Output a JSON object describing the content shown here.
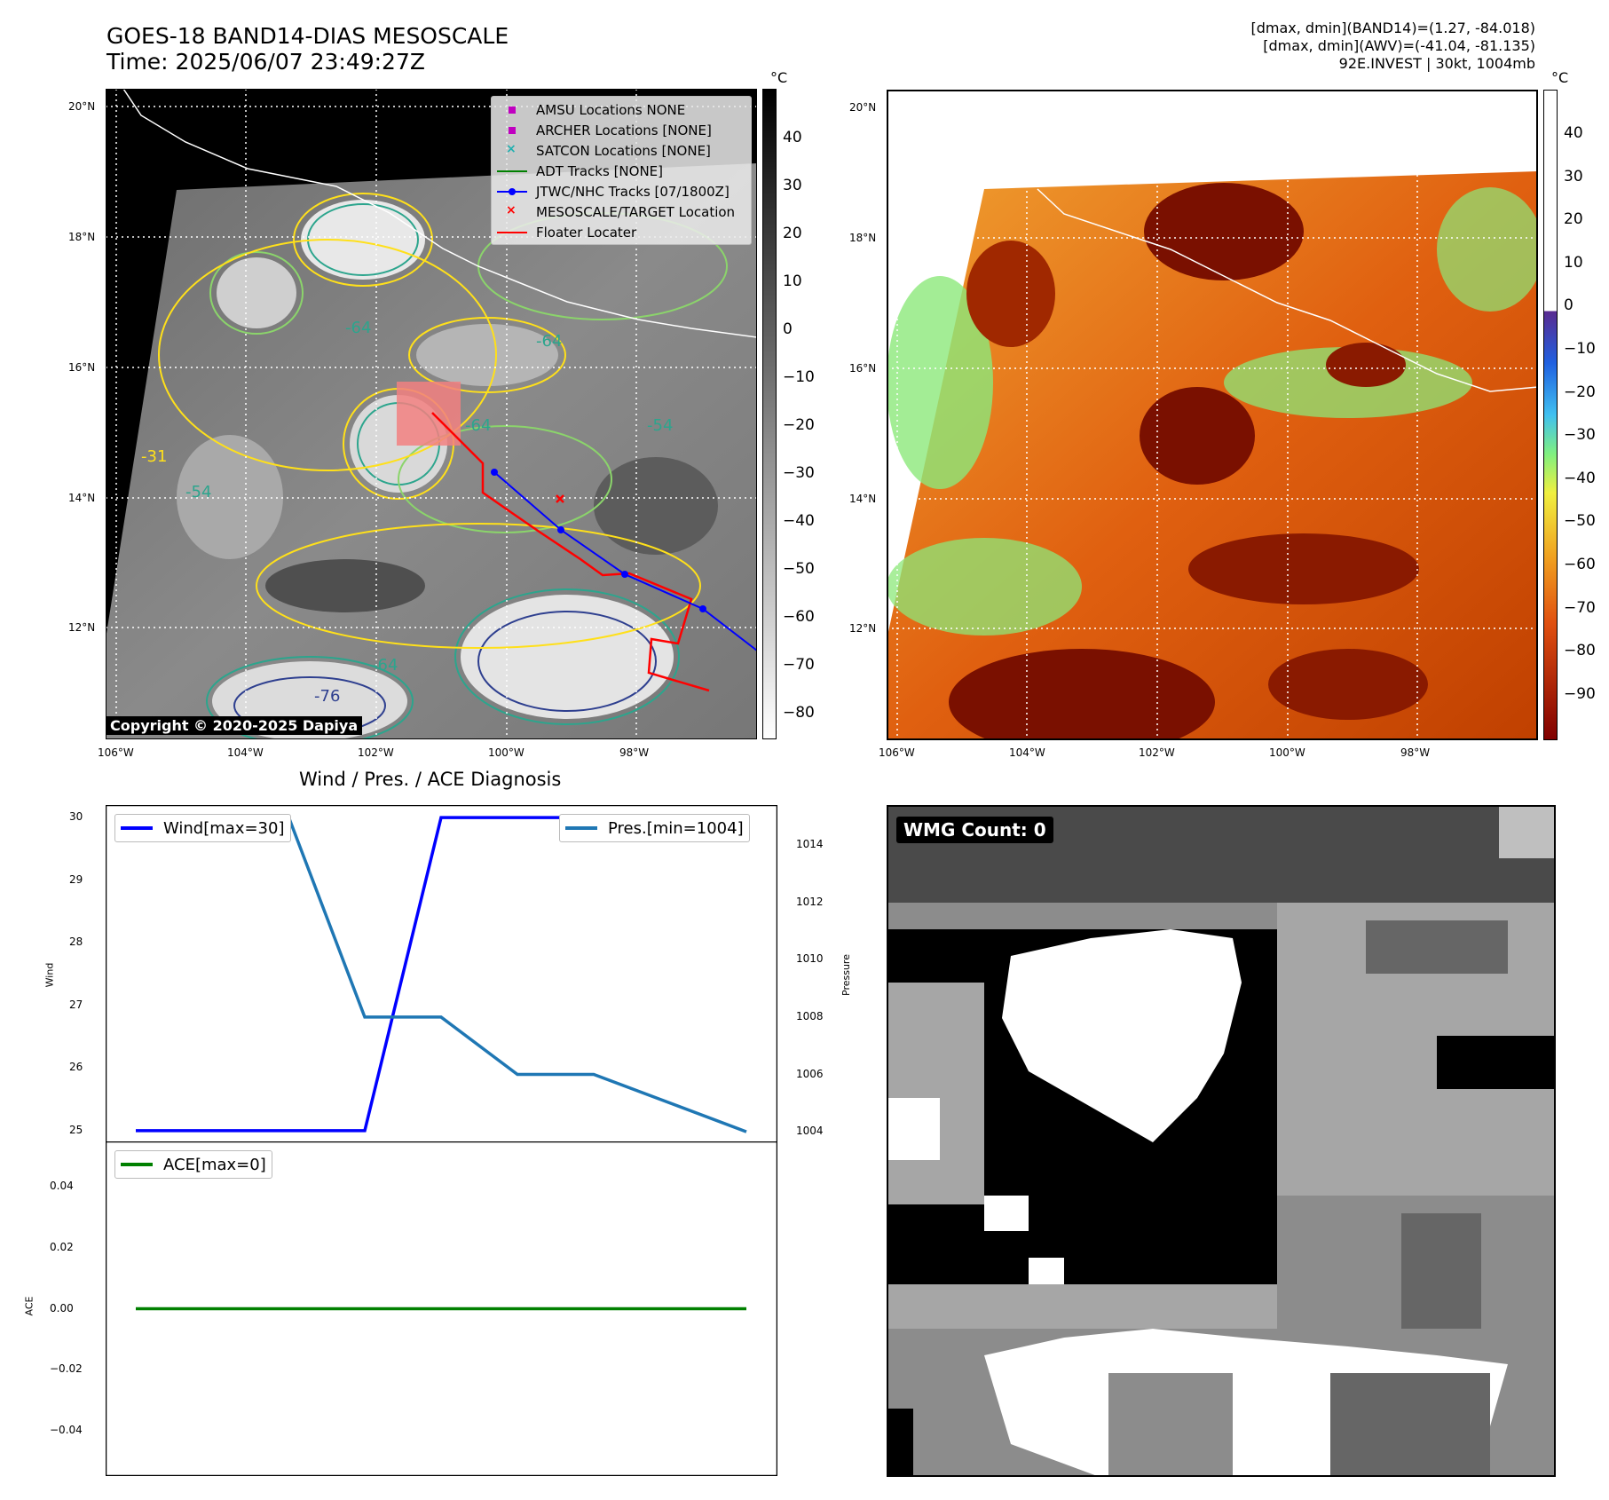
{
  "header": {
    "title_line1": "GOES-18 BAND14-DIAS MESOSCALE",
    "title_line2": "Time: 2025/06/07 23:49:27Z",
    "info_line1": "[dmax, dmin](BAND14)=(1.27, -84.018)",
    "info_line2": "[dmax, dmin](AWV)=(-41.04, -81.135)",
    "info_line3": "92E.INVEST | 30kt, 1004mb"
  },
  "map_left": {
    "lat_labels": [
      "20°N",
      "18°N",
      "16°N",
      "14°N",
      "12°N"
    ],
    "lon_labels": [
      "106°W",
      "104°W",
      "102°W",
      "100°W",
      "98°W"
    ],
    "colorbar_unit": "°C",
    "colorbar_ticks": [
      "40",
      "30",
      "20",
      "10",
      "0",
      "−10",
      "−20",
      "−30",
      "−40",
      "−50",
      "−60",
      "−70",
      "−80"
    ],
    "contour_labels": [
      "-64",
      "-64",
      "-54",
      "-64",
      "-54",
      "-31",
      "-76",
      "-64"
    ],
    "legend": [
      {
        "label": "AMSU Locations NONE",
        "marker": "square",
        "color": "#c000c0"
      },
      {
        "label": "ARCHER Locations [NONE]",
        "marker": "square",
        "color": "#c000c0"
      },
      {
        "label": "SATCON Locations [NONE]",
        "marker": "x",
        "color": "#20b0b0"
      },
      {
        "label": "ADT Tracks [NONE]",
        "marker": "line",
        "color": "#008000"
      },
      {
        "label": "JTWC/NHC Tracks [07/1800Z]",
        "marker": "line-dot",
        "color": "#0000ff"
      },
      {
        "label": "MESOSCALE/TARGET Location",
        "marker": "x",
        "color": "#ff0000"
      },
      {
        "label": "Floater Locater",
        "marker": "line",
        "color": "#ff0000"
      }
    ],
    "copyright": "Copyright © 2020-2025 Dapiya"
  },
  "map_right": {
    "lat_labels": [
      "20°N",
      "18°N",
      "16°N",
      "14°N",
      "12°N"
    ],
    "lon_labels": [
      "106°W",
      "104°W",
      "102°W",
      "100°W",
      "98°W"
    ],
    "colorbar_unit": "°C",
    "colorbar_ticks": [
      "40",
      "30",
      "20",
      "10",
      "0",
      "−10",
      "−20",
      "−30",
      "−40",
      "−50",
      "−60",
      "−70",
      "−80",
      "−90"
    ]
  },
  "diagnosis": {
    "title": "Wind / Pres. / ACE Diagnosis",
    "wind_axis_label": "Wind",
    "pressure_axis_label": "Pressure",
    "ace_axis_label": "ACE",
    "wind_legend": "Wind[max=30]",
    "pres_legend": "Pres.[min=1004]",
    "ace_legend": "ACE[max=0]",
    "wind_ticks": [
      "30",
      "29",
      "28",
      "27",
      "26",
      "25"
    ],
    "pressure_ticks": [
      "1014",
      "1012",
      "1010",
      "1008",
      "1006",
      "1004"
    ],
    "ace_ticks": [
      "0.04",
      "0.02",
      "0.00",
      "−0.02",
      "−0.04"
    ]
  },
  "wmg": {
    "label": "WMG Count: 0"
  },
  "chart_data": [
    {
      "type": "line",
      "x": [
        0,
        1,
        2,
        3,
        4,
        5,
        6,
        7,
        8
      ],
      "series": [
        {
          "name": "Wind[max=30]",
          "axis": "left",
          "color": "#0000ff",
          "values": [
            25,
            25,
            25,
            25,
            30,
            30,
            30,
            30,
            30
          ]
        },
        {
          "name": "Pres.[min=1004]",
          "axis": "right",
          "color": "#1f77b4",
          "values": [
            1015,
            1015,
            1015,
            1008,
            1008,
            1006,
            1006,
            1005,
            1004
          ]
        }
      ],
      "ylabel": "Wind",
      "ylabel_right": "Pressure",
      "ylim": [
        24.8,
        30.2
      ],
      "ylim_right": [
        1003.6,
        1015.4
      ]
    },
    {
      "type": "line",
      "x": [
        0,
        8
      ],
      "series": [
        {
          "name": "ACE[max=0]",
          "color": "#008000",
          "values": [
            0,
            0
          ]
        }
      ],
      "ylabel": "ACE",
      "ylim": [
        -0.055,
        0.055
      ]
    }
  ]
}
